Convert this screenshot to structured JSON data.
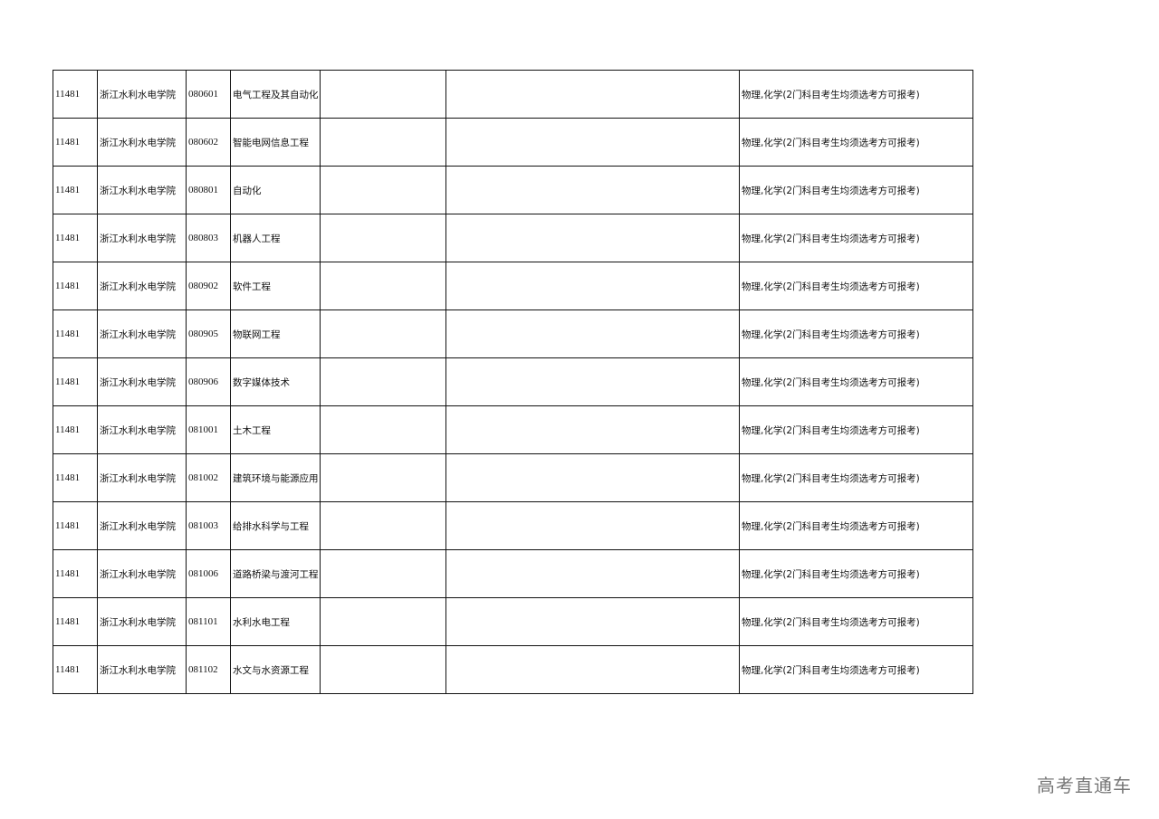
{
  "rows": [
    {
      "code": "11481",
      "school": "浙江水利水电学院",
      "major_code": "080601",
      "major": "电气工程及其自动化",
      "c5": "",
      "c6": "",
      "requirement": "物理,化学(2门科目考生均须选考方可报考)"
    },
    {
      "code": "11481",
      "school": "浙江水利水电学院",
      "major_code": "080602",
      "major": "智能电网信息工程",
      "c5": "",
      "c6": "",
      "requirement": "物理,化学(2门科目考生均须选考方可报考)"
    },
    {
      "code": "11481",
      "school": "浙江水利水电学院",
      "major_code": "080801",
      "major": "自动化",
      "c5": "",
      "c6": "",
      "requirement": "物理,化学(2门科目考生均须选考方可报考)"
    },
    {
      "code": "11481",
      "school": "浙江水利水电学院",
      "major_code": "080803",
      "major": "机器人工程",
      "c5": "",
      "c6": "",
      "requirement": "物理,化学(2门科目考生均须选考方可报考)"
    },
    {
      "code": "11481",
      "school": "浙江水利水电学院",
      "major_code": "080902",
      "major": "软件工程",
      "c5": "",
      "c6": "",
      "requirement": "物理,化学(2门科目考生均须选考方可报考)"
    },
    {
      "code": "11481",
      "school": "浙江水利水电学院",
      "major_code": "080905",
      "major": "物联网工程",
      "c5": "",
      "c6": "",
      "requirement": "物理,化学(2门科目考生均须选考方可报考)"
    },
    {
      "code": "11481",
      "school": "浙江水利水电学院",
      "major_code": "080906",
      "major": "数字媒体技术",
      "c5": "",
      "c6": "",
      "requirement": "物理,化学(2门科目考生均须选考方可报考)"
    },
    {
      "code": "11481",
      "school": "浙江水利水电学院",
      "major_code": "081001",
      "major": "土木工程",
      "c5": "",
      "c6": "",
      "requirement": "物理,化学(2门科目考生均须选考方可报考)"
    },
    {
      "code": "11481",
      "school": "浙江水利水电学院",
      "major_code": "081002",
      "major": "建筑环境与能源应用",
      "c5": "",
      "c6": "",
      "requirement": "物理,化学(2门科目考生均须选考方可报考)"
    },
    {
      "code": "11481",
      "school": "浙江水利水电学院",
      "major_code": "081003",
      "major": "给排水科学与工程",
      "c5": "",
      "c6": "",
      "requirement": "物理,化学(2门科目考生均须选考方可报考)"
    },
    {
      "code": "11481",
      "school": "浙江水利水电学院",
      "major_code": "081006",
      "major": "道路桥梁与渡河工程",
      "c5": "",
      "c6": "",
      "requirement": "物理,化学(2门科目考生均须选考方可报考)"
    },
    {
      "code": "11481",
      "school": "浙江水利水电学院",
      "major_code": "081101",
      "major": "水利水电工程",
      "c5": "",
      "c6": "",
      "requirement": "物理,化学(2门科目考生均须选考方可报考)"
    },
    {
      "code": "11481",
      "school": "浙江水利水电学院",
      "major_code": "081102",
      "major": "水文与水资源工程",
      "c5": "",
      "c6": "",
      "requirement": "物理,化学(2门科目考生均须选考方可报考)"
    }
  ],
  "watermark": "高考直通车"
}
